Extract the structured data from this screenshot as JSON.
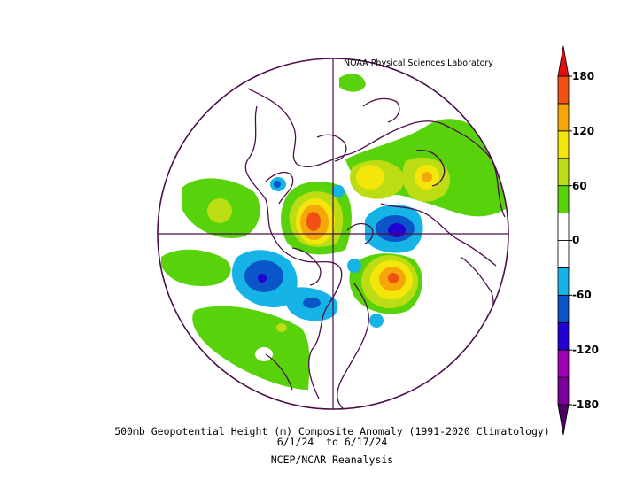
{
  "credit": "NOAA Physical Sciences Laboratory",
  "caption": {
    "line1": "500mb Geopotential Height (m) Composite Anomaly (1991-2020 Climatology)",
    "line2": "6/1/24  to 6/17/24",
    "line3": "NCEP/NCAR Reanalysis"
  },
  "colorbar": {
    "ticks": [
      "180",
      "120",
      "60",
      "0",
      "-60",
      "-120",
      "-180"
    ],
    "colors": [
      "#7a0099",
      "#a000b4",
      "#2200d4",
      "#0a55c8",
      "#16b4e6",
      "#ffffff",
      "#ffffff",
      "#58d20a",
      "#bcdc14",
      "#f4e60a",
      "#f5a60a",
      "#f05014"
    ],
    "top_arrow_color": "#e10f0f",
    "bottom_arrow_color": "#4c0066"
  }
}
